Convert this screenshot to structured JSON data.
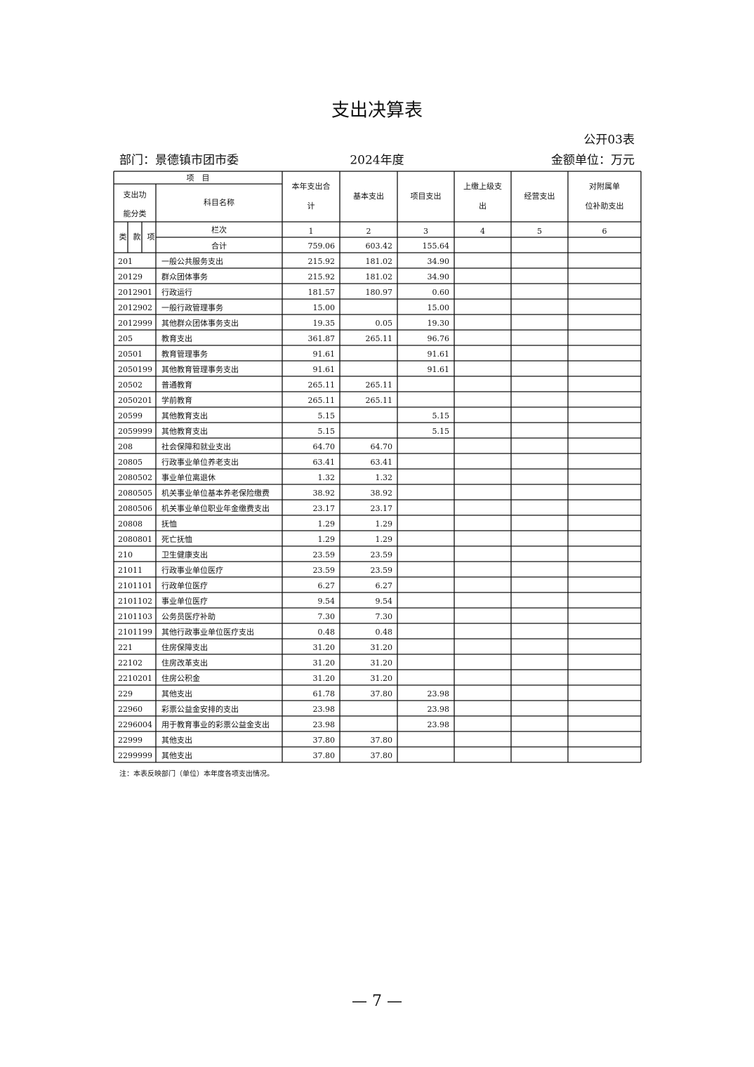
{
  "title": "支出决算表",
  "form_no": "公开03表",
  "department": "部门：景德镇市团市委",
  "year": "2024年度",
  "unit": "金额单位：万元",
  "table": {
    "header": {
      "item": "项　目",
      "function_class": "支出功能分类",
      "subject_name": "科目名称",
      "columns": [
        "本年支出合计",
        "基本支出",
        "项目支出",
        "上缴上级支出",
        "经营支出",
        "对附属单位补助支出"
      ],
      "lei": "类",
      "kuan": "款",
      "xiang": "项",
      "col_no_label": "栏次",
      "col_nos": [
        "1",
        "2",
        "3",
        "4",
        "5",
        "6"
      ]
    },
    "total": {
      "label": "合计",
      "total": "759.06",
      "basic": "603.42",
      "project": "155.64"
    },
    "rows": [
      {
        "code": "201",
        "name": "一般公共服务支出",
        "total": "215.92",
        "basic": "181.02",
        "project": "34.90"
      },
      {
        "code": "20129",
        "name": "群众团体事务",
        "total": "215.92",
        "basic": "181.02",
        "project": "34.90"
      },
      {
        "code": "2012901",
        "name": "行政运行",
        "total": "181.57",
        "basic": "180.97",
        "project": "0.60"
      },
      {
        "code": "2012902",
        "name": "一般行政管理事务",
        "total": "15.00",
        "project": "15.00"
      },
      {
        "code": "2012999",
        "name": "其他群众团体事务支出",
        "total": "19.35",
        "basic": "0.05",
        "project": "19.30"
      },
      {
        "code": "205",
        "name": "教育支出",
        "total": "361.87",
        "basic": "265.11",
        "project": "96.76"
      },
      {
        "code": "20501",
        "name": "教育管理事务",
        "total": "91.61",
        "project": "91.61"
      },
      {
        "code": "2050199",
        "name": "其他教育管理事务支出",
        "total": "91.61",
        "project": "91.61"
      },
      {
        "code": "20502",
        "name": "普通教育",
        "total": "265.11",
        "basic": "265.11"
      },
      {
        "code": "2050201",
        "name": "学前教育",
        "total": "265.11",
        "basic": "265.11"
      },
      {
        "code": "20599",
        "name": "其他教育支出",
        "total": "5.15",
        "project": "5.15"
      },
      {
        "code": "2059999",
        "name": "其他教育支出",
        "total": "5.15",
        "project": "5.15"
      },
      {
        "code": "208",
        "name": "社会保障和就业支出",
        "total": "64.70",
        "basic": "64.70"
      },
      {
        "code": "20805",
        "name": "行政事业单位养老支出",
        "total": "63.41",
        "basic": "63.41"
      },
      {
        "code": "2080502",
        "name": "事业单位离退休",
        "total": "1.32",
        "basic": "1.32"
      },
      {
        "code": "2080505",
        "name": "机关事业单位基本养老保险缴费",
        "total": "38.92",
        "basic": "38.92"
      },
      {
        "code": "2080506",
        "name": "机关事业单位职业年金缴费支出",
        "total": "23.17",
        "basic": "23.17"
      },
      {
        "code": "20808",
        "name": "抚恤",
        "total": "1.29",
        "basic": "1.29"
      },
      {
        "code": "2080801",
        "name": "死亡抚恤",
        "total": "1.29",
        "basic": "1.29"
      },
      {
        "code": "210",
        "name": "卫生健康支出",
        "total": "23.59",
        "basic": "23.59"
      },
      {
        "code": "21011",
        "name": "行政事业单位医疗",
        "total": "23.59",
        "basic": "23.59"
      },
      {
        "code": "2101101",
        "name": "行政单位医疗",
        "total": "6.27",
        "basic": "6.27"
      },
      {
        "code": "2101102",
        "name": "事业单位医疗",
        "total": "9.54",
        "basic": "9.54"
      },
      {
        "code": "2101103",
        "name": "公务员医疗补助",
        "total": "7.30",
        "basic": "7.30"
      },
      {
        "code": "2101199",
        "name": "其他行政事业单位医疗支出",
        "total": "0.48",
        "basic": "0.48"
      },
      {
        "code": "221",
        "name": "住房保障支出",
        "total": "31.20",
        "basic": "31.20"
      },
      {
        "code": "22102",
        "name": "住房改革支出",
        "total": "31.20",
        "basic": "31.20"
      },
      {
        "code": "2210201",
        "name": "住房公积金",
        "total": "31.20",
        "basic": "31.20"
      },
      {
        "code": "229",
        "name": "其他支出",
        "total": "61.78",
        "basic": "37.80",
        "project": "23.98"
      },
      {
        "code": "22960",
        "name": "彩票公益金安排的支出",
        "total": "23.98",
        "project": "23.98"
      },
      {
        "code": "2296004",
        "name": "用于教育事业的彩票公益金支出",
        "total": "23.98",
        "project": "23.98"
      },
      {
        "code": "22999",
        "name": "其他支出",
        "total": "37.80",
        "basic": "37.80"
      },
      {
        "code": "2299999",
        "name": "其他支出",
        "total": "37.80",
        "basic": "37.80"
      }
    ]
  },
  "note": "注：本表反映部门（单位）本年度各项支出情况。",
  "page_number": "— 7 —"
}
